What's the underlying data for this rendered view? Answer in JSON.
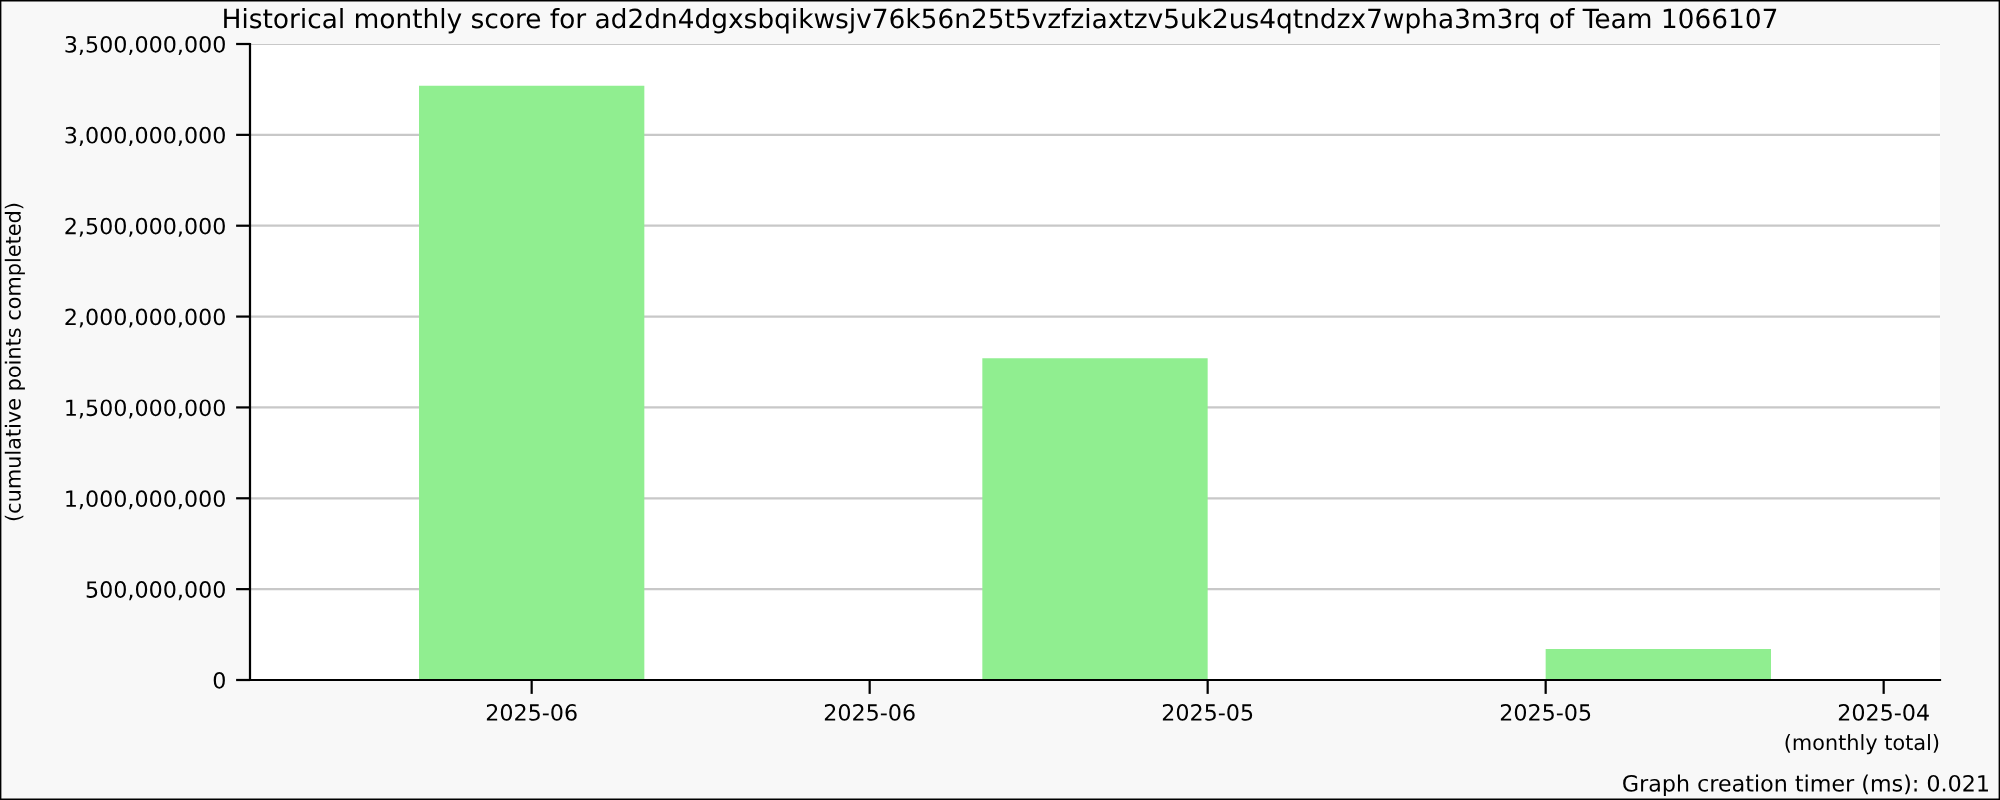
{
  "chart_data": {
    "type": "bar",
    "title": "Historical monthly score for ad2dn4dgxsbqikwsjv76k56n25t5vzfziaxtzv5uk2us4qtndzx7wpha3m3rq of Team 1066107",
    "xlabel": "(monthly total)",
    "ylabel": "(cumulative points completed)",
    "categories": [
      null,
      null,
      "2025-06",
      null,
      null,
      "2025-06",
      null,
      null,
      "2025-05",
      null,
      null,
      "2025-05",
      null,
      null,
      "2025-04"
    ],
    "values": [
      null,
      null,
      3270000000,
      null,
      null,
      null,
      null,
      1770000000,
      null,
      null,
      null,
      null,
      170000000,
      null,
      null
    ],
    "color": "#90ee90",
    "ylim": [
      0,
      3500000000
    ],
    "yticks": [
      {
        "value": 0,
        "label": "0"
      },
      {
        "value": 500000000,
        "label": "500,000,000"
      },
      {
        "value": 1000000000,
        "label": "1,000,000,000"
      },
      {
        "value": 1500000000,
        "label": "1,500,000,000"
      },
      {
        "value": 2000000000,
        "label": "2,000,000,000"
      },
      {
        "value": 2500000000,
        "label": "2,500,000,000"
      },
      {
        "value": 3000000000,
        "label": "3,000,000,000"
      },
      {
        "value": 3500000000,
        "label": "3,500,000,000"
      }
    ],
    "grid": "y",
    "legend": false,
    "annotations": [
      "Graph creation timer (ms): 0.021"
    ]
  }
}
